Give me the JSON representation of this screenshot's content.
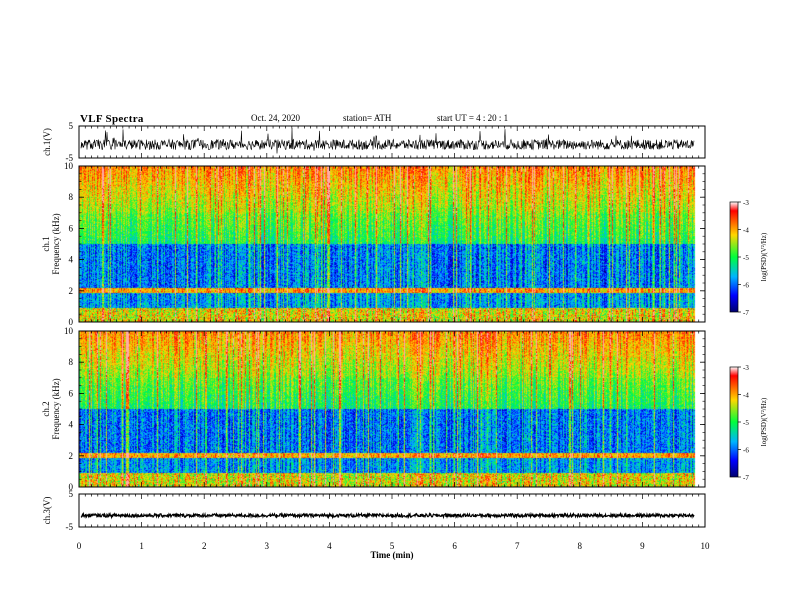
{
  "header": {
    "title": "VLF Spectra",
    "date": "Oct. 24, 2020",
    "station": "station= ATH",
    "start": "start  UT =   4 : 20 : 1"
  },
  "colorbar": {
    "label": "log(PSD)(V²/Hz)",
    "ticks": [
      "-3",
      "-4",
      "-5",
      "-6",
      "-7"
    ],
    "colors": [
      "#ffffff",
      "#ff0000",
      "#ffd700",
      "#00ff3c",
      "#00b4ff",
      "#0000ff",
      "#00006e"
    ]
  },
  "chart_data": [
    {
      "type": "line",
      "panel": "ch1-waveform",
      "ylabel": "ch.1(V)",
      "ylim": [
        -5,
        5
      ],
      "yticks": [
        "5",
        "-5"
      ],
      "xlim": [
        0,
        9.83
      ],
      "values_description_free": true,
      "level": -0.8
    },
    {
      "type": "heatmap",
      "panel": "ch1-spectrogram",
      "ylabel_channel": "ch.1",
      "ylabel": "Frequency (kHz)",
      "ylim": [
        0,
        10
      ],
      "yticks": [
        "0",
        "2",
        "4",
        "6",
        "8",
        "10"
      ],
      "xlim": [
        0,
        9.83
      ],
      "zlim": [
        -7,
        -3
      ]
    },
    {
      "type": "heatmap",
      "panel": "ch2-spectrogram",
      "ylabel_channel": "ch.2",
      "ylabel": "Frequency (kHz)",
      "ylim": [
        0,
        10
      ],
      "yticks": [
        "0",
        "2",
        "4",
        "6",
        "8",
        "10"
      ],
      "xlim": [
        0,
        9.83
      ],
      "zlim": [
        -7,
        -3
      ]
    },
    {
      "type": "line",
      "panel": "ch3-waveform",
      "ylabel": "ch.3(V)",
      "ylim": [
        -5,
        5
      ],
      "yticks": [
        "5",
        "-5"
      ],
      "xlim": [
        0,
        9.83
      ],
      "level": -1.5
    }
  ],
  "xaxis": {
    "label": "Time (min)",
    "range": [
      0,
      10
    ],
    "ticks": [
      "0",
      "1",
      "2",
      "3",
      "4",
      "5",
      "6",
      "7",
      "8",
      "9",
      "10"
    ]
  }
}
